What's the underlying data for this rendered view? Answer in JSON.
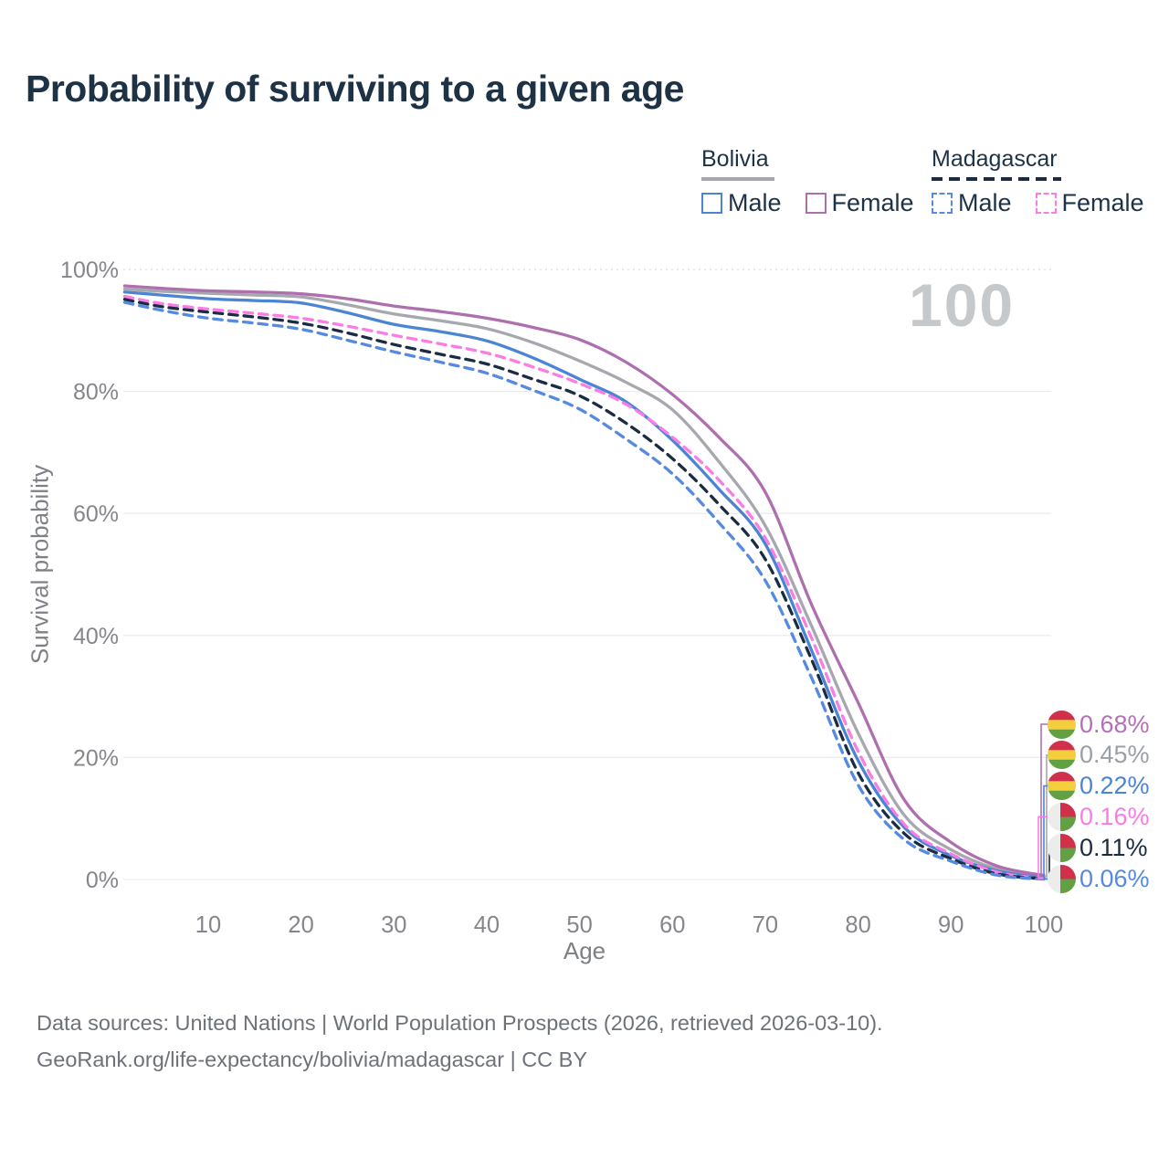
{
  "title": "Probability of surviving to a given age",
  "watermark": "100",
  "legend": {
    "groups": [
      {
        "name": "Bolivia",
        "underline_style": "solid",
        "underline_color": "#a7a7af",
        "items": [
          {
            "label": "Male",
            "color": "#4a85d3",
            "dashed": false
          },
          {
            "label": "Female",
            "color": "#ae6fae",
            "dashed": false
          }
        ]
      },
      {
        "name": "Madagascar",
        "underline_style": "dashed",
        "underline_color": "#1b2c42",
        "items": [
          {
            "label": "Male",
            "color": "#5589e2",
            "dashed": true
          },
          {
            "label": "Female",
            "color": "#fb7ce4",
            "dashed": true
          }
        ]
      }
    ]
  },
  "flags": {
    "bolivia": [
      "#d03049",
      "#f5ce3e",
      "#62a044"
    ],
    "madagascar": [
      "#ececec",
      "#d03049",
      "#62a044"
    ]
  },
  "chart_data": {
    "type": "line",
    "title": "Probability of surviving to a given age",
    "xlabel": "Age",
    "ylabel": "Survival probability",
    "xlim": [
      0,
      100
    ],
    "ylim": [
      0,
      100
    ],
    "grid": "horizontal",
    "xticks": [
      10,
      20,
      30,
      40,
      50,
      60,
      70,
      80,
      90,
      100
    ],
    "yticks": [
      0,
      20,
      40,
      60,
      80,
      100
    ],
    "ytick_labels": [
      "0%",
      "20%",
      "40%",
      "60%",
      "80%",
      "100%"
    ],
    "x": [
      1,
      5,
      10,
      15,
      20,
      25,
      30,
      35,
      40,
      45,
      50,
      55,
      60,
      65,
      70,
      75,
      80,
      85,
      90,
      95,
      100
    ],
    "series": [
      {
        "name": "Bolivia Female",
        "country": "Bolivia",
        "sex": "Female",
        "color": "#ae6fae",
        "dashed": false,
        "flag": "bolivia",
        "end_label": "0.68%",
        "label_color": "#b470b4",
        "values": [
          97.3,
          96.9,
          96.5,
          96.3,
          96.0,
          95.2,
          94.0,
          93.1,
          92.0,
          90.5,
          88.5,
          84.8,
          79.5,
          72.5,
          63.5,
          45.0,
          29.0,
          13.0,
          6.1,
          2.2,
          0.68
        ]
      },
      {
        "name": "Bolivia Both sexes",
        "country": "Bolivia",
        "sex": "Both",
        "color": "#a7a7af",
        "dashed": false,
        "flag": "bolivia",
        "end_label": "0.45%",
        "label_color": "#9ba0a6",
        "values": [
          96.8,
          96.4,
          96.1,
          95.8,
          95.5,
          94.2,
          92.7,
          91.6,
          90.3,
          88.0,
          85.0,
          81.5,
          77.0,
          68.5,
          58.0,
          41.5,
          24.0,
          10.5,
          4.9,
          1.7,
          0.45
        ]
      },
      {
        "name": "Bolivia Male",
        "country": "Bolivia",
        "sex": "Male",
        "color": "#4a85d3",
        "dashed": false,
        "flag": "bolivia",
        "end_label": "0.22%",
        "label_color": "#4a85d3",
        "values": [
          96.3,
          95.8,
          95.2,
          94.9,
          94.5,
          92.9,
          91.0,
          89.8,
          88.3,
          85.5,
          82.0,
          78.3,
          72.0,
          64.0,
          55.0,
          37.5,
          19.5,
          8.5,
          3.9,
          1.4,
          0.22
        ]
      },
      {
        "name": "Madagascar Female",
        "country": "Madagascar",
        "sex": "Female",
        "color": "#fb7ce4",
        "dashed": true,
        "flag": "madagascar",
        "end_label": "0.16%",
        "label_color": "#fb7ce4",
        "values": [
          95.6,
          94.4,
          93.5,
          92.8,
          92.0,
          90.7,
          89.2,
          87.8,
          86.3,
          84.0,
          81.3,
          77.9,
          72.5,
          65.5,
          56.0,
          39.5,
          21.0,
          9.0,
          4.2,
          1.2,
          0.16
        ]
      },
      {
        "name": "Madagascar Both sexes",
        "country": "Madagascar",
        "sex": "Both",
        "color": "#1b2c42",
        "dashed": true,
        "flag": "madagascar",
        "end_label": "0.11%",
        "label_color": "#1b2c42",
        "values": [
          95.1,
          93.9,
          93.0,
          92.2,
          91.2,
          89.6,
          87.7,
          86.1,
          84.5,
          82.0,
          79.3,
          74.8,
          69.0,
          61.5,
          52.5,
          36.0,
          17.5,
          7.5,
          3.4,
          0.9,
          0.11
        ]
      },
      {
        "name": "Madagascar Male",
        "country": "Madagascar",
        "sex": "Male",
        "color": "#5589e2",
        "dashed": true,
        "flag": "madagascar",
        "end_label": "0.06%",
        "label_color": "#5589e2",
        "values": [
          94.6,
          93.3,
          92.0,
          91.2,
          90.2,
          88.4,
          86.5,
          84.8,
          83.0,
          80.2,
          77.1,
          72.2,
          66.5,
          58.5,
          49.0,
          33.0,
          15.5,
          6.5,
          3.0,
          0.7,
          0.06
        ]
      }
    ]
  },
  "footer": {
    "line1": "Data sources: United Nations | World Population Prospects (2026, retrieved 2026-03-10).",
    "line2": "GeoRank.org/life-expectancy/bolivia/madagascar | CC BY"
  }
}
